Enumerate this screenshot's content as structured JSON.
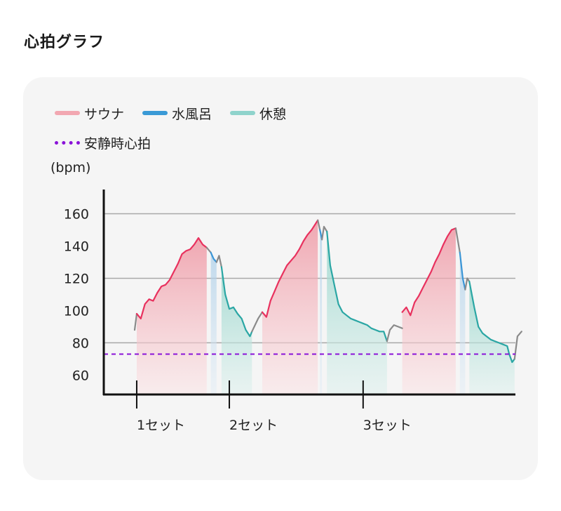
{
  "page_title": "心拍グラフ",
  "colors": {
    "sauna": "#e8315e",
    "sauna_fill": "#f2a7b1",
    "water_bath": "#3a95d6",
    "rest": "#2aa6a4",
    "rest_fill": "#a7dcd2",
    "other": "#8a8a8a",
    "resting_hr": "#8a13d8"
  },
  "chart_data": {
    "type": "line",
    "title": "心拍グラフ",
    "ylabel": "(bpm)",
    "xlabel": "",
    "ylim": [
      48,
      175
    ],
    "yticks": [
      60,
      80,
      100,
      120,
      140,
      160
    ],
    "xlim": [
      0,
      100
    ],
    "grid": true,
    "legend": [
      {
        "key": "sauna",
        "label": "サウナ"
      },
      {
        "key": "water_bath",
        "label": "水風呂"
      },
      {
        "key": "rest",
        "label": "休憩"
      },
      {
        "key": "resting_hr",
        "label": "安静時心拍"
      }
    ],
    "resting_hr": 73,
    "set_markers": [
      {
        "x": 8,
        "label": "1セット"
      },
      {
        "x": 30.5,
        "label": "2セット"
      },
      {
        "x": 63,
        "label": "3セット"
      }
    ],
    "segments": [
      {
        "phase": "other",
        "points": [
          [
            7.5,
            88
          ],
          [
            8,
            98
          ]
        ]
      },
      {
        "phase": "sauna",
        "points": [
          [
            8,
            98
          ],
          [
            9,
            95
          ],
          [
            10,
            104
          ],
          [
            11,
            107
          ],
          [
            12,
            106
          ],
          [
            13,
            111
          ],
          [
            14,
            115
          ],
          [
            15,
            116
          ],
          [
            16,
            119
          ],
          [
            17,
            124
          ],
          [
            18,
            129
          ],
          [
            19,
            135
          ],
          [
            20,
            137
          ],
          [
            21,
            138
          ],
          [
            22,
            141
          ],
          [
            23,
            145
          ],
          [
            24,
            141
          ],
          [
            25,
            139
          ]
        ]
      },
      {
        "phase": "other",
        "points": [
          [
            25,
            139
          ],
          [
            26,
            136
          ]
        ]
      },
      {
        "phase": "water_bath",
        "points": [
          [
            26,
            136
          ],
          [
            26.7,
            132
          ],
          [
            27.4,
            130
          ]
        ]
      },
      {
        "phase": "other",
        "points": [
          [
            27.4,
            130
          ],
          [
            28,
            134
          ],
          [
            28.6,
            127
          ]
        ]
      },
      {
        "phase": "rest",
        "points": [
          [
            28.6,
            127
          ],
          [
            29.5,
            110
          ],
          [
            30.5,
            101
          ],
          [
            31.5,
            102
          ],
          [
            32.5,
            98
          ],
          [
            33.5,
            95
          ],
          [
            34.5,
            88
          ],
          [
            35.5,
            84
          ],
          [
            36,
            87
          ]
        ]
      },
      {
        "phase": "other",
        "points": [
          [
            36,
            87
          ],
          [
            37.5,
            95
          ],
          [
            38.5,
            99
          ]
        ]
      },
      {
        "phase": "sauna",
        "points": [
          [
            38.5,
            99
          ],
          [
            39.5,
            96
          ],
          [
            40.5,
            106
          ],
          [
            41.5,
            112
          ],
          [
            42.5,
            118
          ],
          [
            43.5,
            123
          ],
          [
            44.5,
            128
          ],
          [
            45.5,
            131
          ],
          [
            46.5,
            134
          ],
          [
            47.5,
            138
          ],
          [
            48.5,
            143
          ],
          [
            49.5,
            147
          ],
          [
            50.5,
            150
          ],
          [
            51.5,
            154
          ],
          [
            52,
            156
          ]
        ]
      },
      {
        "phase": "other",
        "points": [
          [
            52,
            156
          ],
          [
            52.5,
            150
          ]
        ]
      },
      {
        "phase": "water_bath",
        "points": [
          [
            52.5,
            150
          ],
          [
            53,
            144
          ]
        ]
      },
      {
        "phase": "other",
        "points": [
          [
            53,
            144
          ],
          [
            53.5,
            152
          ],
          [
            54.2,
            149
          ]
        ]
      },
      {
        "phase": "rest",
        "points": [
          [
            54.2,
            149
          ],
          [
            55,
            128
          ],
          [
            56,
            116
          ],
          [
            57,
            104
          ],
          [
            58,
            99
          ],
          [
            59,
            97
          ],
          [
            60,
            95
          ],
          [
            61,
            94
          ],
          [
            62,
            93
          ],
          [
            63,
            92
          ],
          [
            64,
            91
          ],
          [
            65,
            89
          ],
          [
            66,
            88
          ],
          [
            67,
            87
          ],
          [
            68,
            87
          ],
          [
            68.8,
            81
          ]
        ]
      },
      {
        "phase": "other",
        "points": [
          [
            68.8,
            81
          ],
          [
            69.5,
            88
          ],
          [
            70.5,
            91
          ],
          [
            71.5,
            90
          ],
          [
            72.5,
            89
          ]
        ]
      },
      {
        "phase": "sauna",
        "points": [
          [
            72.5,
            99
          ],
          [
            73.5,
            102
          ],
          [
            74.5,
            97
          ],
          [
            75.5,
            105
          ],
          [
            76.5,
            109
          ],
          [
            77.5,
            114
          ],
          [
            78.5,
            119
          ],
          [
            79.5,
            124
          ],
          [
            80.5,
            130
          ],
          [
            81.5,
            135
          ],
          [
            82.5,
            141
          ],
          [
            83.5,
            146
          ],
          [
            84.5,
            150
          ],
          [
            85.5,
            151
          ]
        ]
      },
      {
        "phase": "other",
        "points": [
          [
            85.5,
            151
          ],
          [
            86.5,
            136
          ]
        ]
      },
      {
        "phase": "water_bath",
        "points": [
          [
            86.5,
            136
          ],
          [
            87.2,
            120
          ],
          [
            87.8,
            113
          ]
        ]
      },
      {
        "phase": "other",
        "points": [
          [
            87.8,
            113
          ],
          [
            88.3,
            120
          ],
          [
            88.8,
            118
          ]
        ]
      },
      {
        "phase": "rest",
        "points": [
          [
            88.8,
            118
          ],
          [
            90,
            102
          ],
          [
            91,
            90
          ],
          [
            92,
            86
          ],
          [
            93,
            84
          ],
          [
            94,
            82
          ],
          [
            95,
            81
          ],
          [
            96,
            80
          ],
          [
            97,
            79
          ],
          [
            98,
            78
          ],
          [
            98.5,
            73
          ],
          [
            99.2,
            68
          ],
          [
            99.8,
            70
          ]
        ]
      },
      {
        "phase": "other",
        "points": [
          [
            99.8,
            70
          ],
          [
            100.5,
            84
          ],
          [
            101.5,
            87
          ]
        ]
      }
    ]
  }
}
